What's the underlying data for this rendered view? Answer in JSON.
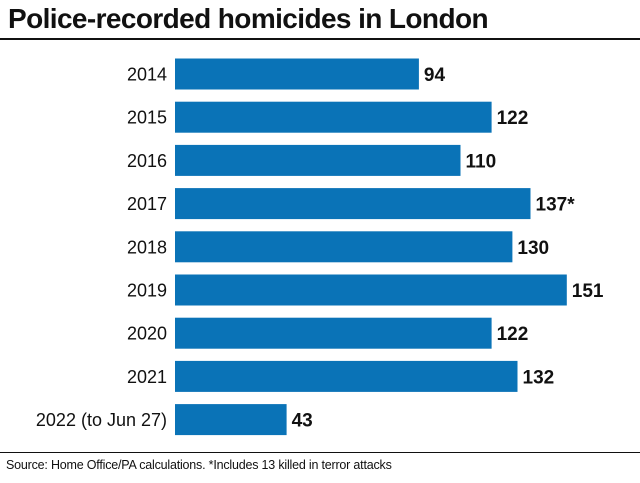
{
  "title": "Police-recorded homicides in London",
  "source": "Source: Home Office/PA calculations. *Includes 13 killed in terror attacks",
  "colors": {
    "bar": "#0a73b7",
    "text": "#111111",
    "rule": "#111111"
  },
  "chart_data": {
    "type": "bar",
    "orientation": "horizontal",
    "title": "Police-recorded homicides in London",
    "categories": [
      "2014",
      "2015",
      "2016",
      "2017",
      "2018",
      "2019",
      "2020",
      "2021",
      "2022 (to Jun 27)"
    ],
    "values": [
      94,
      122,
      110,
      137,
      130,
      151,
      122,
      132,
      43
    ],
    "data_labels": [
      "94",
      "122",
      "110",
      "137*",
      "130",
      "151",
      "122",
      "132",
      "43"
    ],
    "xlabel": "",
    "ylabel": "",
    "grid": false,
    "legend": "none"
  }
}
